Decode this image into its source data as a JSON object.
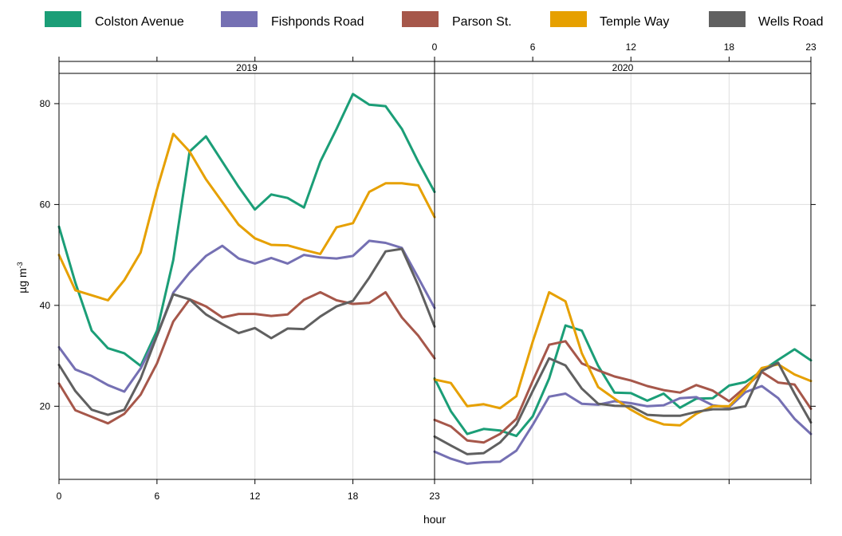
{
  "chart_data": {
    "type": "line",
    "xlabel": "hour",
    "ylabel": "µg m",
    "ylabel_superscript": "-3",
    "xlim": [
      0,
      23
    ],
    "ylim": [
      5.5,
      86
    ],
    "yticks": [
      20,
      40,
      60,
      80
    ],
    "xticks": [
      0,
      6,
      12,
      18,
      23
    ],
    "grid": true,
    "legend_position": "top",
    "panels": [
      {
        "label": "2019",
        "series": [
          {
            "name": "Colston Avenue",
            "color": "#1b9e77",
            "values": [
              55.6,
              44.5,
              35.0,
              31.5,
              30.5,
              28.0,
              35.0,
              49.0,
              70.5,
              73.5,
              68.5,
              63.5,
              59.0,
              62.0,
              61.3,
              59.4,
              68.5,
              75.0,
              81.9,
              79.8,
              79.5,
              75.0,
              68.5,
              62.5
            ]
          },
          {
            "name": "Fishponds Road",
            "color": "#7570b3",
            "values": [
              31.7,
              27.3,
              26.0,
              24.2,
              22.9,
              27.5,
              34.0,
              42.5,
              46.5,
              49.8,
              51.8,
              49.3,
              48.3,
              49.4,
              48.3,
              50.0,
              49.5,
              49.3,
              49.8,
              52.8,
              52.4,
              51.4,
              45.5,
              39.5
            ]
          },
          {
            "name": "Parson St.",
            "color": "#a6574a",
            "values": [
              24.5,
              19.2,
              17.9,
              16.6,
              18.5,
              22.3,
              28.5,
              36.8,
              41.2,
              39.8,
              37.6,
              38.3,
              38.3,
              37.9,
              38.2,
              41.1,
              42.6,
              41.0,
              40.3,
              40.5,
              42.6,
              37.6,
              34.0,
              29.5
            ]
          },
          {
            "name": "Temple Way",
            "color": "#e6a000",
            "values": [
              50.0,
              43.0,
              42.0,
              41.0,
              45.0,
              50.5,
              63.0,
              74.0,
              70.5,
              65.0,
              60.5,
              56.0,
              53.3,
              52.0,
              51.9,
              51.0,
              50.2,
              55.5,
              56.3,
              62.5,
              64.2,
              64.2,
              63.8,
              57.5
            ]
          },
          {
            "name": "Wells Road",
            "color": "#606060",
            "values": [
              28.2,
              23.0,
              19.3,
              18.3,
              19.3,
              25.5,
              34.0,
              42.2,
              41.2,
              38.2,
              36.3,
              34.5,
              35.5,
              33.5,
              35.4,
              35.3,
              37.8,
              39.8,
              40.9,
              45.5,
              50.7,
              51.2,
              44.0,
              35.8
            ]
          }
        ]
      },
      {
        "label": "2020",
        "series": [
          {
            "name": "Colston Avenue",
            "color": "#1b9e77",
            "values": [
              25.5,
              19.0,
              14.5,
              15.5,
              15.2,
              14.1,
              18.0,
              25.5,
              36.0,
              35.0,
              28.0,
              22.7,
              22.6,
              21.1,
              22.5,
              19.7,
              21.5,
              21.6,
              24.1,
              24.8,
              27.0,
              29.2,
              31.3,
              29.1
            ]
          },
          {
            "name": "Fishponds Road",
            "color": "#7570b3",
            "values": [
              11.0,
              9.6,
              8.6,
              8.9,
              9.0,
              11.2,
              16.3,
              21.9,
              22.5,
              20.5,
              20.3,
              21.0,
              20.6,
              20.0,
              20.2,
              21.6,
              21.8,
              20.2,
              19.8,
              22.8,
              24.0,
              21.6,
              17.5,
              14.5
            ]
          },
          {
            "name": "Parson St.",
            "color": "#a6574a",
            "values": [
              17.3,
              16.0,
              13.2,
              12.8,
              14.5,
              17.5,
              25.0,
              32.2,
              32.9,
              28.5,
              27.1,
              25.9,
              25.1,
              24.0,
              23.2,
              22.7,
              24.2,
              23.1,
              21.0,
              23.8,
              26.8,
              24.7,
              24.3,
              19.5
            ]
          },
          {
            "name": "Temple Way",
            "color": "#e6a000",
            "values": [
              25.3,
              24.6,
              20.0,
              20.4,
              19.6,
              22.0,
              32.8,
              42.6,
              40.8,
              30.5,
              23.8,
              21.5,
              19.3,
              17.5,
              16.4,
              16.2,
              18.5,
              20.0,
              20.0,
              23.4,
              27.6,
              28.3,
              26.3,
              25.0
            ]
          },
          {
            "name": "Wells Road",
            "color": "#606060",
            "values": [
              14.0,
              12.2,
              10.5,
              10.7,
              12.8,
              16.3,
              23.0,
              29.5,
              28.1,
              23.5,
              20.5,
              20.1,
              20.0,
              18.3,
              18.1,
              18.1,
              18.9,
              19.4,
              19.4,
              20.0,
              27.0,
              28.6,
              22.5,
              16.8
            ]
          }
        ]
      }
    ]
  }
}
